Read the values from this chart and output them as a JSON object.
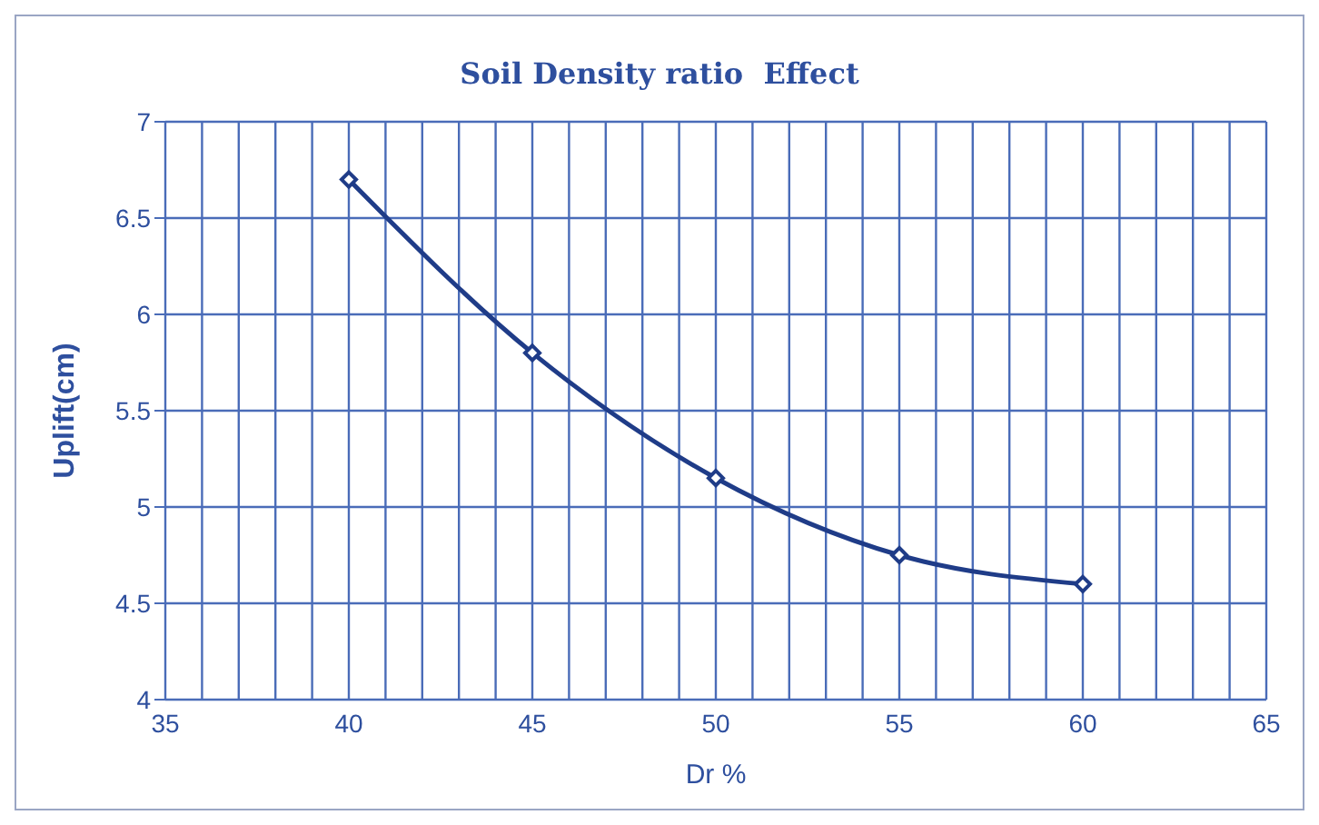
{
  "chart_data": {
    "type": "line",
    "title": "Soil Density ratio  Effect",
    "xlabel": "Dr %",
    "ylabel": "Uplift(cm)",
    "x": [
      40,
      45,
      50,
      55,
      60
    ],
    "series": [
      {
        "color": "#1f3c88",
        "values": [
          6.7,
          5.8,
          5.15,
          4.75,
          4.6
        ]
      }
    ],
    "xlim": [
      35,
      65
    ],
    "xticks": [
      35,
      {
        "value": 36,
        "label": null
      },
      {
        "value": 37,
        "label": null
      },
      {
        "value": 38,
        "label": null
      },
      {
        "value": 39,
        "label": null
      },
      40,
      {
        "value": 41,
        "label": null
      },
      {
        "value": 42,
        "label": null
      },
      {
        "value": 43,
        "label": null
      },
      {
        "value": 44,
        "label": null
      },
      45,
      {
        "value": 46,
        "label": null
      },
      {
        "value": 47,
        "label": null
      },
      {
        "value": 48,
        "label": null
      },
      {
        "value": 49,
        "label": null
      },
      50,
      {
        "value": 51,
        "label": null
      },
      {
        "value": 52,
        "label": null
      },
      {
        "value": 53,
        "label": null
      },
      {
        "value": 54,
        "label": null
      },
      55,
      {
        "value": 56,
        "label": null
      },
      {
        "value": 57,
        "label": null
      },
      {
        "value": 58,
        "label": null
      },
      {
        "value": 59,
        "label": null
      },
      60,
      {
        "value": 61,
        "label": null
      },
      {
        "value": 62,
        "label": null
      },
      {
        "value": 63,
        "label": null
      },
      {
        "value": 64,
        "label": null
      },
      65
    ],
    "ylim": [
      4,
      7
    ],
    "yticks": [
      4,
      4.5,
      5,
      5.5,
      6,
      6.5,
      7
    ],
    "grid": true,
    "legend": false,
    "marker": "diamond",
    "line_style": "solid"
  }
}
